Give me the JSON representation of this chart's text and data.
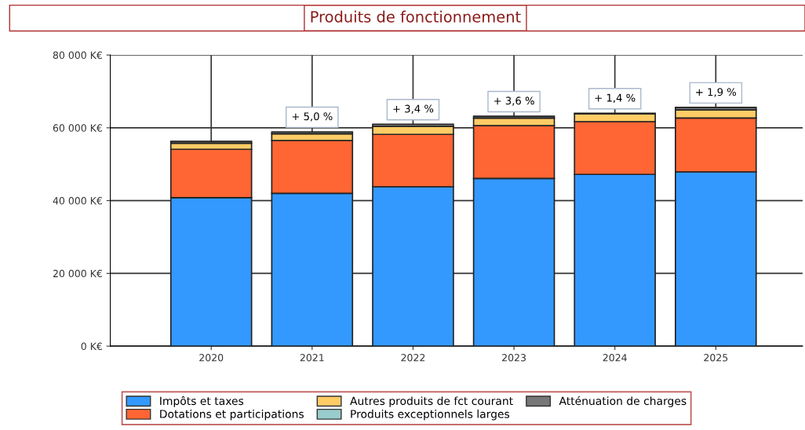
{
  "chart_data": {
    "type": "bar",
    "title": "Produits de fonctionnement",
    "stacked": true,
    "categories": [
      "2020",
      "2021",
      "2022",
      "2023",
      "2024",
      "2025"
    ],
    "series": [
      {
        "name": "Impôts et taxes",
        "color": "#3399ff",
        "values": [
          40800,
          42000,
          43800,
          46100,
          47200,
          47900
        ]
      },
      {
        "name": "Dotations et participations",
        "color": "#ff6633",
        "values": [
          13300,
          14500,
          14400,
          14500,
          14500,
          14800
        ]
      },
      {
        "name": "Autres produits de fct courant",
        "color": "#ffcc66",
        "values": [
          1700,
          1900,
          2200,
          2100,
          2100,
          2200
        ]
      },
      {
        "name": "Produits exceptionnels larges",
        "color": "#99cccc",
        "values": [
          0,
          0,
          0,
          0,
          0,
          0
        ]
      },
      {
        "name": "Atténuation de charges",
        "color": "#777777",
        "values": [
          500,
          500,
          600,
          500,
          200,
          700
        ]
      }
    ],
    "ylim": [
      0,
      80000
    ],
    "yticks": [
      {
        "value": 0,
        "label": "0 K€"
      },
      {
        "value": 20000,
        "label": "20 000 K€"
      },
      {
        "value": 40000,
        "label": "40 000 K€"
      },
      {
        "value": 60000,
        "label": "60 000 K€"
      },
      {
        "value": 80000,
        "label": "80 000 K€"
      }
    ],
    "annotations": [
      {
        "text": "+ 5,0 %",
        "x": "2021",
        "y": 58900
      },
      {
        "text": "+ 3,4 %",
        "x": "2022",
        "y": 61000
      },
      {
        "text": "+ 3,6 %",
        "x": "2023",
        "y": 63200
      },
      {
        "text": "+ 1,4 %",
        "x": "2024",
        "y": 64000
      },
      {
        "text": "+ 1,9 %",
        "x": "2025",
        "y": 65600
      }
    ],
    "grid": true,
    "legend": "bottom"
  }
}
